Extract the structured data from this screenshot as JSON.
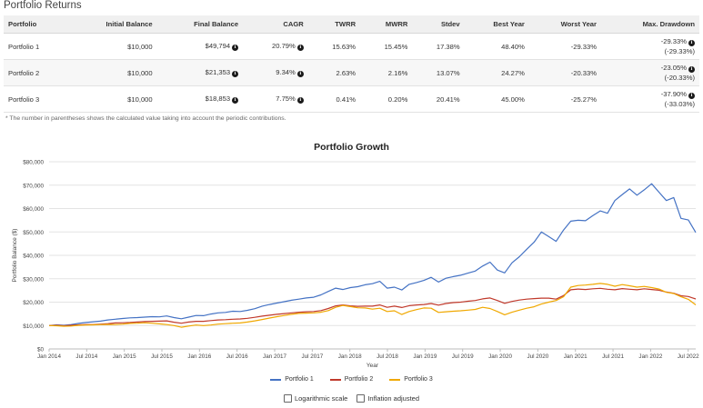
{
  "section_title": "Portfolio Returns",
  "table": {
    "headers": [
      "Portfolio",
      "Initial Balance",
      "Final Balance",
      "CAGR",
      "TWRR",
      "MWRR",
      "Stdev",
      "Best Year",
      "Worst Year",
      "Max. Drawdown"
    ],
    "rows": [
      {
        "name": "Portfolio 1",
        "initial": "$10,000",
        "final": "$49,794",
        "cagr": "20.79%",
        "twrr": "15.63%",
        "mwrr": "15.45%",
        "stdev": "17.38%",
        "best": "48.40%",
        "worst": "-29.33%",
        "dd": "-29.33%",
        "dd_sub": "(-29.33%)"
      },
      {
        "name": "Portfolio 2",
        "initial": "$10,000",
        "final": "$21,353",
        "cagr": "9.34%",
        "twrr": "2.63%",
        "mwrr": "2.16%",
        "stdev": "13.07%",
        "best": "24.27%",
        "worst": "-20.33%",
        "dd": "-23.05%",
        "dd_sub": "(-20.33%)"
      },
      {
        "name": "Portfolio 3",
        "initial": "$10,000",
        "final": "$18,853",
        "cagr": "7.75%",
        "twrr": "0.41%",
        "mwrr": "0.20%",
        "stdev": "20.41%",
        "best": "45.00%",
        "worst": "-25.27%",
        "dd": "-37.90%",
        "dd_sub": "(-33.03%)"
      }
    ]
  },
  "footnote": "* The number in parentheses shows the calculated value taking into account the periodic contributions.",
  "options": {
    "log_label": "Logarithmic scale",
    "inflation_label": "Inflation adjusted"
  },
  "chart_data": {
    "type": "line",
    "title": "Portfolio Growth",
    "xlabel": "Year",
    "ylabel": "Portfolio Balance ($)",
    "ylim": [
      0,
      80000
    ],
    "y_ticks": [
      0,
      10000,
      20000,
      30000,
      40000,
      50000,
      60000,
      70000,
      80000
    ],
    "y_tick_labels": [
      "$0",
      "$10,000",
      "$20,000",
      "$30,000",
      "$40,000",
      "$50,000",
      "$60,000",
      "$70,000",
      "$80,000"
    ],
    "x_tick_labels": [
      "Jan 2014",
      "Jul 2014",
      "Jan 2015",
      "Jul 2015",
      "Jan 2016",
      "Jul 2016",
      "Jan 2017",
      "Jul 2017",
      "Jan 2018",
      "Jul 2018",
      "Jan 2019",
      "Jul 2019",
      "Jan 2020",
      "Jul 2020",
      "Jan 2021",
      "Jul 2021",
      "Jan 2022",
      "Jul 2022"
    ],
    "x_start": 2014.0,
    "x_end": 2022.6,
    "x_step": 0.5,
    "series": [
      {
        "name": "Portfolio 1",
        "color": "#4472c4",
        "values": [
          10000,
          10300,
          10100,
          10400,
          10900,
          11300,
          11600,
          11900,
          12400,
          12700,
          13000,
          13300,
          13400,
          13600,
          13800,
          13700,
          14100,
          13400,
          12900,
          13600,
          14300,
          14200,
          14900,
          15400,
          15600,
          16100,
          16000,
          16500,
          17200,
          18300,
          19000,
          19600,
          20200,
          20800,
          21300,
          21800,
          22100,
          23100,
          24600,
          26000,
          25400,
          26200,
          26600,
          27400,
          27900,
          28900,
          26000,
          26400,
          25200,
          27600,
          28400,
          29300,
          30600,
          28600,
          30200,
          30900,
          31500,
          32400,
          33300,
          35400,
          37100,
          33700,
          32500,
          36800,
          39400,
          42600,
          45600,
          50000,
          48000,
          46000,
          50800,
          54600,
          55000,
          54800,
          57000,
          59000,
          58000,
          63400,
          66000,
          68400,
          65700,
          68000,
          70600,
          67000,
          63400,
          64700,
          55800,
          55100,
          49800
        ]
      },
      {
        "name": "Portfolio 2",
        "color": "#c0392b",
        "values": [
          10000,
          10100,
          9900,
          10100,
          10300,
          10400,
          10400,
          10600,
          10800,
          11100,
          11200,
          11300,
          11500,
          11700,
          11800,
          11900,
          12000,
          11400,
          11000,
          11500,
          11800,
          11800,
          12100,
          12400,
          12500,
          12700,
          12800,
          13100,
          13500,
          14000,
          14400,
          14800,
          15100,
          15400,
          15700,
          15900,
          16000,
          16400,
          17300,
          18400,
          18800,
          18400,
          18200,
          18300,
          18300,
          18800,
          17800,
          18300,
          17700,
          18500,
          18800,
          19000,
          19400,
          18700,
          19400,
          19800,
          20000,
          20400,
          20700,
          21400,
          21800,
          20700,
          19500,
          20300,
          20900,
          21300,
          21500,
          21700,
          21700,
          21300,
          22800,
          25300,
          25600,
          25400,
          25700,
          25900,
          25500,
          25300,
          25800,
          25500,
          25300,
          25700,
          25400,
          25100,
          24300,
          23800,
          22700,
          22400,
          21353
        ]
      },
      {
        "name": "Portfolio 3",
        "color": "#f0a800",
        "values": [
          10000,
          9900,
          9700,
          9800,
          10100,
          10200,
          10300,
          10400,
          10500,
          10400,
          10600,
          10900,
          11000,
          11200,
          11000,
          10700,
          10400,
          10000,
          9300,
          9800,
          10200,
          10000,
          10200,
          10600,
          10800,
          11000,
          11100,
          11500,
          12000,
          12600,
          13200,
          13800,
          14300,
          14800,
          15200,
          15300,
          15400,
          15700,
          16400,
          17800,
          18600,
          18100,
          17600,
          17500,
          17000,
          17400,
          16000,
          16300,
          14700,
          16000,
          16800,
          17500,
          17400,
          15600,
          15900,
          16100,
          16300,
          16600,
          16900,
          17800,
          17300,
          16000,
          14600,
          15700,
          16600,
          17400,
          18000,
          19200,
          20000,
          20700,
          22300,
          26400,
          27100,
          27300,
          27600,
          28000,
          27600,
          26800,
          27500,
          27000,
          26400,
          26700,
          26200,
          25600,
          24200,
          23700,
          22300,
          21200,
          18853
        ]
      }
    ]
  }
}
